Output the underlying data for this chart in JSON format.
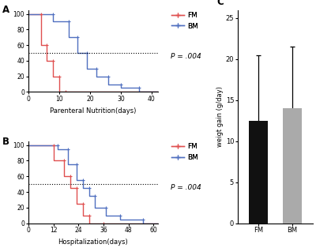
{
  "panel_A": {
    "label": "A",
    "xlabel": "Parenteral Nutrition(days)",
    "xlim": [
      0,
      42
    ],
    "ylim": [
      0,
      105
    ],
    "xticks": [
      0,
      10,
      20,
      30,
      40
    ],
    "yticks": [
      0,
      20,
      40,
      60,
      80,
      100
    ],
    "dotted_y": 50,
    "p_text": "P = .004",
    "FM_x": [
      0,
      4,
      4,
      6,
      6,
      8,
      8,
      10,
      10,
      12,
      12,
      42
    ],
    "FM_y": [
      100,
      100,
      60,
      60,
      40,
      40,
      20,
      20,
      0,
      0,
      0,
      0
    ],
    "BM_x": [
      0,
      8,
      8,
      13,
      13,
      16,
      16,
      19,
      19,
      22,
      22,
      26,
      26,
      30,
      30,
      36,
      36,
      42
    ],
    "BM_y": [
      100,
      100,
      90,
      90,
      70,
      70,
      50,
      50,
      30,
      30,
      20,
      20,
      10,
      10,
      5,
      5,
      0,
      0
    ],
    "FM_color": "#e05050",
    "BM_color": "#5070c0"
  },
  "panel_B": {
    "label": "B",
    "xlabel": "Hospitalization(days)",
    "xlim": [
      0,
      62
    ],
    "ylim": [
      0,
      105
    ],
    "xticks": [
      0,
      12,
      24,
      36,
      48,
      60
    ],
    "yticks": [
      0,
      20,
      40,
      60,
      80,
      100
    ],
    "dotted_y": 50,
    "p_text": "P = .004",
    "FM_x": [
      0,
      12,
      12,
      17,
      17,
      20,
      20,
      23,
      23,
      26,
      26,
      29,
      29,
      36,
      36,
      62
    ],
    "FM_y": [
      100,
      100,
      80,
      80,
      60,
      60,
      45,
      45,
      25,
      25,
      10,
      10,
      0,
      0,
      0,
      0
    ],
    "BM_x": [
      0,
      14,
      14,
      19,
      19,
      23,
      23,
      26,
      26,
      29,
      29,
      32,
      32,
      37,
      37,
      44,
      44,
      55,
      55,
      62
    ],
    "BM_y": [
      100,
      100,
      95,
      95,
      75,
      75,
      55,
      55,
      45,
      45,
      35,
      35,
      20,
      20,
      10,
      10,
      5,
      5,
      0,
      0
    ],
    "FM_color": "#e05050",
    "BM_color": "#5070c0"
  },
  "panel_C": {
    "label": "C",
    "ylabel": "weigt gain (g/day)",
    "categories": [
      "FM",
      "BM"
    ],
    "values": [
      12.5,
      14.0
    ],
    "errors": [
      8.0,
      7.5
    ],
    "bar_colors": [
      "#111111",
      "#aaaaaa"
    ],
    "ylim": [
      0,
      26
    ],
    "yticks": [
      0,
      5,
      10,
      15,
      20,
      25
    ]
  },
  "legend_FM": "FM",
  "legend_BM": "BM",
  "FM_color": "#e05050",
  "BM_color": "#5070c0"
}
